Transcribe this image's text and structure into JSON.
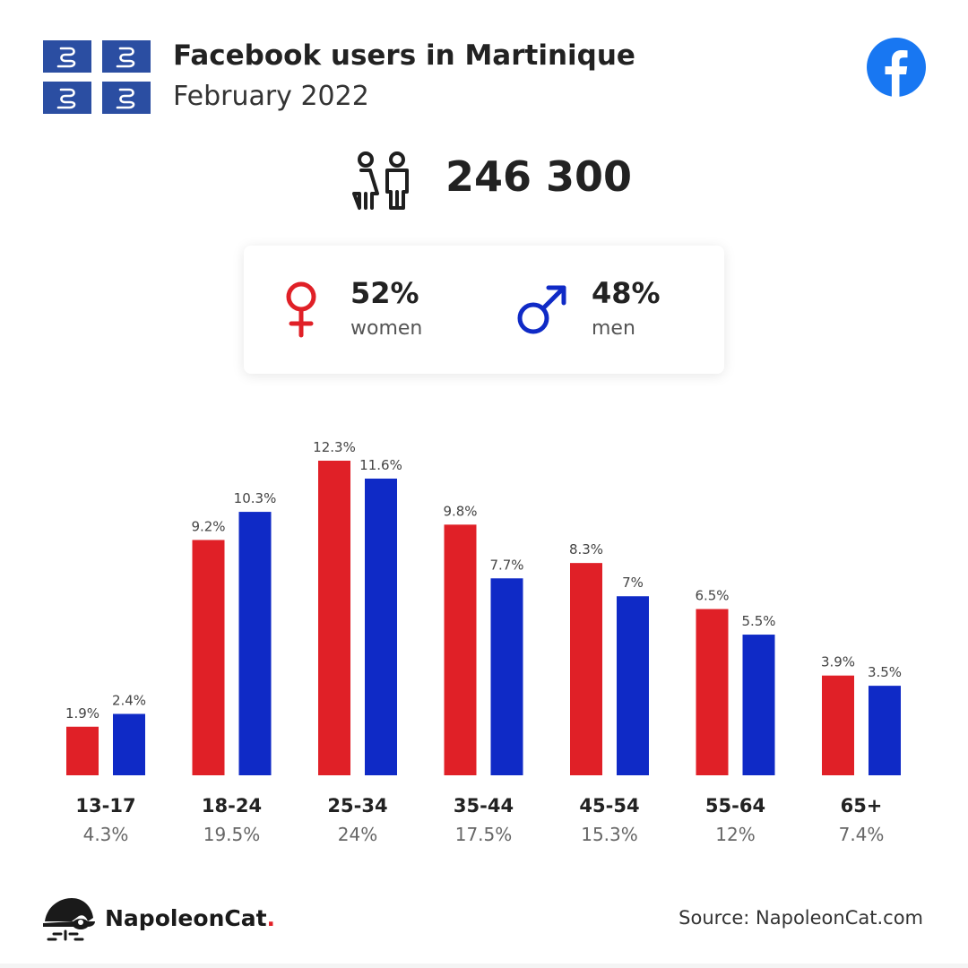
{
  "header": {
    "title": "Facebook users in Martinique",
    "subtitle": "February 2022"
  },
  "total": {
    "value": "246 300"
  },
  "gender": {
    "women": {
      "pct": "52%",
      "label": "women"
    },
    "men": {
      "pct": "48%",
      "label": "men"
    }
  },
  "colors": {
    "women": "#e02027",
    "men": "#0f2ac6",
    "facebook": "#1877f2",
    "flag": "#2b4ea2"
  },
  "icons": [
    "martinique-flag-icon",
    "facebook-icon",
    "people-icon",
    "female-icon",
    "male-icon",
    "napoleoncat-logo"
  ],
  "chart_data": {
    "type": "bar",
    "categories": [
      "13-17",
      "18-24",
      "25-34",
      "35-44",
      "45-54",
      "55-64",
      "65+"
    ],
    "category_totals": [
      "4.3%",
      "19.5%",
      "24%",
      "17.5%",
      "15.3%",
      "12%",
      "7.4%"
    ],
    "series": [
      {
        "values": [
          1.9,
          9.2,
          12.3,
          9.8,
          8.3,
          6.5,
          3.9
        ],
        "labels": [
          "1.9%",
          "9.2%",
          "12.3%",
          "9.8%",
          "8.3%",
          "6.5%",
          "3.9%"
        ],
        "color": "#e02027"
      },
      {
        "values": [
          2.4,
          10.3,
          11.6,
          7.7,
          7.0,
          5.5,
          3.5
        ],
        "labels": [
          "2.4%",
          "10.3%",
          "11.6%",
          "7.7%",
          "7%",
          "5.5%",
          "3.5%"
        ],
        "color": "#0f2ac6"
      }
    ],
    "ylim": [
      0,
      12.3
    ],
    "grid": false
  },
  "footer": {
    "brand": "NapoleonCat",
    "brand_dot": ".",
    "source": "Source: NapoleonCat.com"
  }
}
